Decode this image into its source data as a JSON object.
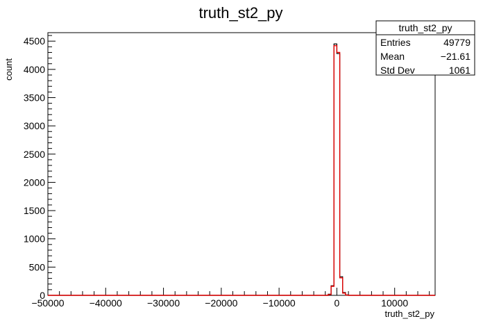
{
  "chart_data": {
    "type": "histogram",
    "title": "truth_st2_py",
    "xlabel": "truth_st2_py",
    "ylabel": "count",
    "xlim": [
      -50000,
      17000
    ],
    "ylim": [
      0,
      4650
    ],
    "x_major_ticks": [
      -50000,
      -40000,
      -30000,
      -20000,
      -10000,
      0,
      10000
    ],
    "x_tick_labels": [
      "−50000",
      "−40000",
      "−30000",
      "−20000",
      "−10000",
      "0",
      "10000"
    ],
    "y_major_ticks": [
      0,
      500,
      1000,
      1500,
      2000,
      2500,
      3000,
      3500,
      4000,
      4500
    ],
    "y_tick_labels": [
      "0",
      "500",
      "1000",
      "1500",
      "2000",
      "2500",
      "3000",
      "3500",
      "4000",
      "4500"
    ],
    "series": [
      {
        "line_color": "#000000",
        "bins": [
          {
            "x0": -1500,
            "x1": -1000,
            "y": 20
          },
          {
            "x0": -1000,
            "x1": -500,
            "y": 170
          },
          {
            "x0": -500,
            "x1": 0,
            "y": 4450
          },
          {
            "x0": 0,
            "x1": 500,
            "y": 4280
          },
          {
            "x0": 500,
            "x1": 1000,
            "y": 330
          },
          {
            "x0": 1000,
            "x1": 1500,
            "y": 50
          },
          {
            "x0": 1500,
            "x1": 2000,
            "y": 8
          }
        ]
      },
      {
        "line_color": "#e00000",
        "bins": [
          {
            "x0": -1500,
            "x1": -1000,
            "y": 15
          },
          {
            "x0": -1000,
            "x1": -500,
            "y": 160
          },
          {
            "x0": -500,
            "x1": 0,
            "y": 4420
          },
          {
            "x0": 0,
            "x1": 500,
            "y": 4300
          },
          {
            "x0": 500,
            "x1": 1000,
            "y": 310
          },
          {
            "x0": 1000,
            "x1": 1500,
            "y": 40
          },
          {
            "x0": 1500,
            "x1": 2000,
            "y": 5
          }
        ]
      }
    ],
    "stats_box": {
      "title": "truth_st2_py",
      "rows": [
        {
          "label": "Entries",
          "value": "49779"
        },
        {
          "label": "Mean",
          "value": "−21.61"
        },
        {
          "label": "Std Dev",
          "value": "1061"
        }
      ]
    }
  }
}
